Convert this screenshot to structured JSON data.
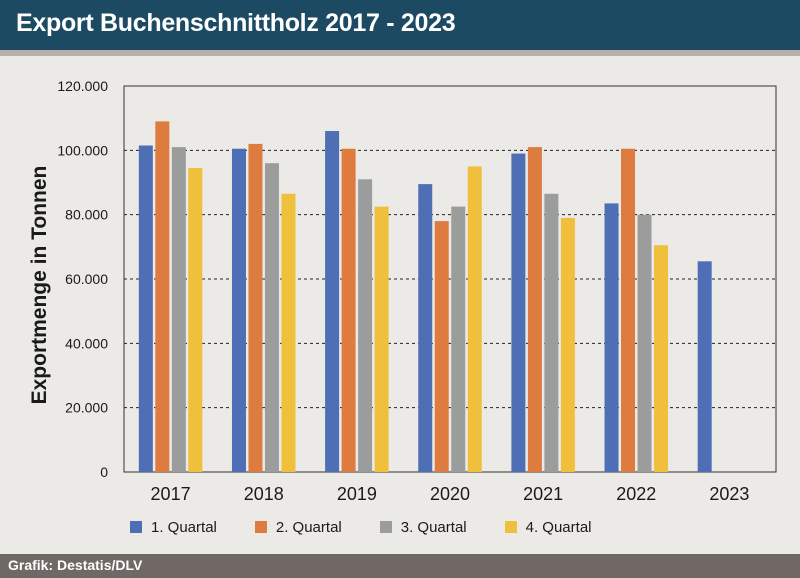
{
  "header": {
    "title": "Export Buchenschnittholz 2017 - 2023"
  },
  "footer": {
    "source": "Grafik: Destatis/DLV"
  },
  "colors": {
    "header_bg": "#1d4a63",
    "q1": "#4e6fb6",
    "q2": "#de7c40",
    "q3": "#9b9c9c",
    "q4": "#f0bf3b"
  },
  "chart_data": {
    "type": "bar",
    "title": "Export Buchenschnittholz 2017 - 2023",
    "xlabel": "",
    "ylabel": "Exportmenge in Tonnen",
    "categories": [
      "2017",
      "2018",
      "2019",
      "2020",
      "2021",
      "2022",
      "2023"
    ],
    "ylim": [
      0,
      120000
    ],
    "yticks": [
      0,
      20000,
      40000,
      60000,
      80000,
      100000,
      120000
    ],
    "ytick_labels": [
      "0",
      "20.000",
      "40.000",
      "60.000",
      "80.000",
      "100.000",
      "120.000"
    ],
    "grid": true,
    "legend_position": "bottom",
    "series": [
      {
        "name": "1. Quartal",
        "color": "#4e6fb6",
        "values": [
          101500,
          100500,
          106000,
          89500,
          99000,
          83500,
          65500
        ]
      },
      {
        "name": "2. Quartal",
        "color": "#de7c40",
        "values": [
          109000,
          102000,
          100500,
          78000,
          101000,
          100500,
          null
        ]
      },
      {
        "name": "3. Quartal",
        "color": "#9b9c9c",
        "values": [
          101000,
          96000,
          91000,
          82500,
          86500,
          80000,
          null
        ]
      },
      {
        "name": "4. Quartal",
        "color": "#f0bf3b",
        "values": [
          94500,
          86500,
          82500,
          95000,
          79000,
          70500,
          null
        ]
      }
    ]
  }
}
